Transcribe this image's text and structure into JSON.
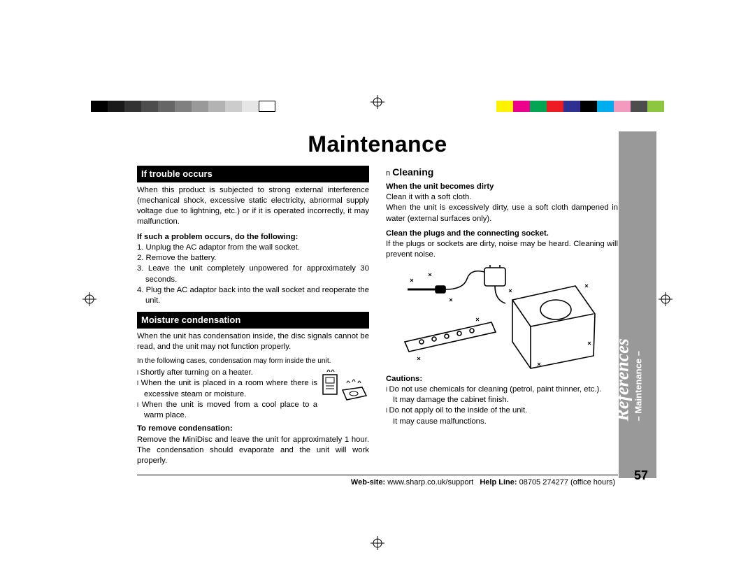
{
  "page_title": "Maintenance",
  "section_trouble": {
    "heading": "If trouble occurs",
    "para": "When this product is subjected to strong external interference (mechanical shock, excessive static electricity, abnormal supply voltage due to lightning, etc.) or if it is operated incorrectly, it may malfunction.",
    "sub_bold": "If such a problem occurs, do the following:",
    "steps": [
      "1. Unplug the AC adaptor from the wall socket.",
      "2. Remove the battery.",
      "3. Leave the unit completely unpowered for approximately 30 seconds.",
      "4. Plug the AC adaptor back into the wall socket and reoperate the unit."
    ]
  },
  "section_moisture": {
    "heading": "Moisture condensation",
    "para": "When the unit has condensation inside, the disc signals cannot be read, and the unit may not function properly.",
    "note": "In the following cases, condensation may form inside the unit.",
    "cases": [
      "Shortly after turning on a heater.",
      "When the unit is placed in a room where there is excessive steam or moisture.",
      "When the unit is moved from a cool place to a warm place."
    ],
    "sub_bold": "To remove condensation:",
    "remove_text": "Remove the MiniDisc and leave the unit for approximately 1 hour. The condensation should evaporate and the unit will work properly."
  },
  "section_cleaning": {
    "heading": "Cleaning",
    "sub1": "When the unit becomes dirty",
    "sub1_text1": "Clean it with a soft cloth.",
    "sub1_text2": "When the unit is excessively dirty, use a soft cloth dampened in water (external surfaces only).",
    "sub2": "Clean the plugs and the connecting socket.",
    "sub2_text": "If the plugs or sockets are dirty, noise may be heard. Cleaning will prevent noise.",
    "cautions_label": "Cautions:",
    "cautions": [
      "Do not use chemicals for cleaning (petrol, paint thinner, etc.).",
      "It may damage the cabinet finish.",
      "Do not apply oil to the inside of the unit.",
      "It may cause malfunctions."
    ]
  },
  "footer": {
    "website_label": "Web-site:",
    "website": " www.sharp.co.uk/support",
    "helpline_label": "Help Line:",
    "helpline": " 08705 274277 (office hours)"
  },
  "side": {
    "title": "References",
    "sub": "– Maintenance –"
  },
  "page_number": "57",
  "gray_swatches": [
    "#000000",
    "#1a1a1a",
    "#333333",
    "#4d4d4d",
    "#666666",
    "#808080",
    "#999999",
    "#b3b3b3",
    "#cccccc",
    "#e6e6e6",
    "#ffffff"
  ],
  "color_swatches": [
    "#fff200",
    "#ec008c",
    "#00a651",
    "#ed1c24",
    "#2e3192",
    "#000000",
    "#00aeef",
    "#f49ac1",
    "#4d4d4d",
    "#8dc63f"
  ]
}
